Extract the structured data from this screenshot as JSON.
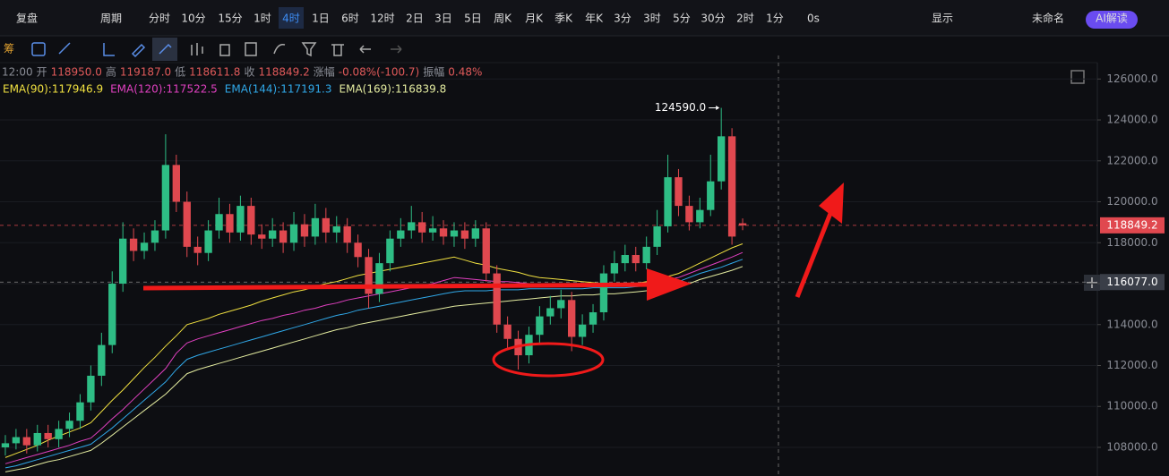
{
  "toolbar": {
    "items": [
      "复盘",
      "周期",
      "分时",
      "10分",
      "15分",
      "1时",
      "4时",
      "1日",
      "6时",
      "12时",
      "2日",
      "3日",
      "5日",
      "周K",
      "月K",
      "季K",
      "年K",
      "3分",
      "3时",
      "5分",
      "30分",
      "2时",
      "1分",
      "0s",
      "显示",
      "未命名",
      "AI解读"
    ],
    "active": "4时",
    "side_label": "筹"
  },
  "info": [
    "12:00",
    "开",
    "118950.0",
    "高",
    "119187.0",
    "低",
    "118611.8",
    "收",
    "118849.2",
    "涨幅",
    "-0.08%(-100.7)",
    "振幅",
    "0.48%"
  ],
  "chart_data": {
    "type": "candlestick",
    "open": [
      108000,
      108200,
      108500,
      108100,
      108700,
      108400,
      108900,
      109300,
      110200,
      111500,
      113000,
      116000,
      118200,
      117600,
      118000,
      118600,
      121800,
      120000,
      117800,
      117500,
      118600,
      119400,
      118500,
      119800,
      118400,
      118200,
      118600,
      118000,
      118900,
      118300,
      119200,
      118500,
      118800,
      118000,
      117300,
      115500,
      117000,
      118200,
      118600,
      119000,
      118500,
      118700,
      118300,
      118600,
      118200,
      118700,
      116500,
      114000,
      113300,
      112500,
      113500,
      114400,
      114800,
      115200,
      113400,
      114000,
      114600,
      116500,
      117000,
      117400,
      117000,
      117800,
      118800,
      121200,
      119800,
      119000,
      119600,
      121000,
      123200,
      118950
    ],
    "high": [
      108600,
      108900,
      108900,
      109100,
      109100,
      109300,
      109700,
      110600,
      112000,
      113600,
      116600,
      119000,
      118700,
      118500,
      119100,
      123300,
      122300,
      120500,
      118300,
      119100,
      120200,
      119900,
      120300,
      120200,
      118900,
      119200,
      119000,
      119500,
      119400,
      119900,
      119700,
      119300,
      119200,
      118400,
      117700,
      117500,
      118600,
      119200,
      119800,
      119500,
      119300,
      119100,
      119000,
      119000,
      119100,
      119000,
      116900,
      114400,
      113700,
      113900,
      114900,
      115400,
      115700,
      115600,
      114500,
      115000,
      116900,
      117600,
      117900,
      117800,
      118300,
      119600,
      122300,
      121600,
      120300,
      120200,
      122300,
      124590,
      123600,
      119187
    ],
    "low": [
      107600,
      107900,
      107700,
      107800,
      108000,
      108000,
      108500,
      108900,
      109800,
      111000,
      112600,
      115600,
      117100,
      117200,
      117600,
      118200,
      119500,
      117300,
      116900,
      117100,
      118200,
      118000,
      118100,
      117900,
      117700,
      117800,
      117500,
      117600,
      117800,
      117900,
      118000,
      118000,
      117500,
      116800,
      114800,
      115100,
      116600,
      117800,
      118200,
      118000,
      118100,
      117900,
      117800,
      117700,
      117800,
      116100,
      113600,
      112800,
      111800,
      112100,
      113100,
      114000,
      114300,
      112700,
      113000,
      113600,
      114200,
      116100,
      116600,
      116600,
      116700,
      117400,
      118500,
      119300,
      118600,
      118700,
      119300,
      120600,
      117900,
      118611.8
    ],
    "close": [
      108200,
      108500,
      108100,
      108700,
      108400,
      108900,
      109300,
      110200,
      111500,
      113000,
      116000,
      118200,
      117600,
      118000,
      118600,
      121800,
      120000,
      117800,
      117500,
      118600,
      119400,
      118500,
      119800,
      118400,
      118200,
      118600,
      118000,
      118900,
      118300,
      119200,
      118500,
      118800,
      118000,
      117300,
      115500,
      117000,
      118200,
      118600,
      119000,
      118500,
      118700,
      118300,
      118600,
      118200,
      118700,
      116500,
      114000,
      113300,
      112500,
      113500,
      114400,
      114800,
      115200,
      113400,
      114000,
      114600,
      116500,
      117000,
      117400,
      117000,
      117800,
      118800,
      121200,
      119800,
      119000,
      119600,
      121000,
      123200,
      118300,
      118849.2
    ],
    "up_color": "#2ebd85",
    "down_color": "#e0484f",
    "series": [
      {
        "name": "EMA(90):117946.9",
        "color": "#f0e040",
        "values": [
          107500,
          107700,
          107900,
          108100,
          108350,
          108550,
          108750,
          108950,
          109200,
          109750,
          110300,
          110800,
          111350,
          111900,
          112400,
          112950,
          113450,
          114000,
          114150,
          114300,
          114500,
          114650,
          114800,
          114950,
          115150,
          115300,
          115450,
          115600,
          115700,
          115850,
          116000,
          116100,
          116250,
          116400,
          116500,
          116600,
          116700,
          116800,
          116900,
          117000,
          117100,
          117200,
          117300,
          117150,
          117000,
          116900,
          116750,
          116650,
          116550,
          116400,
          116300,
          116250,
          116200,
          116150,
          116100,
          116050,
          116000,
          115950,
          115900,
          116000,
          116100,
          116250,
          116350,
          116500,
          116750,
          117000,
          117250,
          117500,
          117750,
          117946.9
        ]
      },
      {
        "name": "EMA(120):117522.5",
        "color": "#e040c0",
        "values": [
          107200,
          107350,
          107500,
          107650,
          107800,
          107950,
          108100,
          108300,
          108450,
          108900,
          109400,
          109850,
          110350,
          110850,
          111350,
          111850,
          112600,
          113100,
          113300,
          113450,
          113600,
          113750,
          113900,
          114050,
          114200,
          114300,
          114450,
          114550,
          114700,
          114800,
          114950,
          115050,
          115200,
          115300,
          115400,
          115500,
          115600,
          115700,
          115800,
          115900,
          116000,
          116150,
          116300,
          116250,
          116200,
          116150,
          116100,
          116100,
          116050,
          116000,
          116000,
          115950,
          115950,
          115950,
          115950,
          115950,
          115950,
          115950,
          115950,
          116000,
          116050,
          116150,
          116200,
          116300,
          116500,
          116700,
          116900,
          117100,
          117300,
          117522.5
        ]
      },
      {
        "name": "EMA(144):117191.3",
        "color": "#30a8e8",
        "values": [
          107000,
          107100,
          107250,
          107400,
          107550,
          107700,
          107850,
          108000,
          108150,
          108550,
          108950,
          109400,
          109850,
          110300,
          110750,
          111200,
          111800,
          112300,
          112500,
          112650,
          112800,
          112950,
          113100,
          113250,
          113400,
          113550,
          113700,
          113850,
          114000,
          114150,
          114300,
          114450,
          114550,
          114700,
          114800,
          114900,
          115000,
          115100,
          115200,
          115300,
          115400,
          115500,
          115600,
          115650,
          115650,
          115650,
          115700,
          115700,
          115700,
          115750,
          115750,
          115750,
          115750,
          115750,
          115750,
          115800,
          115800,
          115800,
          115800,
          115850,
          115900,
          115950,
          116000,
          116100,
          116300,
          116500,
          116650,
          116800,
          117000,
          117191.3
        ]
      },
      {
        "name": "EMA(169):116839.8",
        "color": "#e4eca0",
        "values": [
          106800,
          106900,
          107000,
          107150,
          107300,
          107400,
          107550,
          107700,
          107850,
          108200,
          108600,
          109000,
          109400,
          109800,
          110200,
          110600,
          111100,
          111600,
          111800,
          111950,
          112100,
          112250,
          112400,
          112550,
          112700,
          112850,
          113000,
          113150,
          113300,
          113450,
          113600,
          113750,
          113850,
          114000,
          114100,
          114200,
          114300,
          114400,
          114500,
          114600,
          114700,
          114800,
          114900,
          114950,
          115000,
          115050,
          115100,
          115150,
          115200,
          115250,
          115300,
          115350,
          115400,
          115400,
          115450,
          115450,
          115500,
          115500,
          115550,
          115600,
          115650,
          115700,
          115750,
          115800,
          116000,
          116200,
          116350,
          116500,
          116650,
          116839.8
        ]
      }
    ],
    "ylim": [
      106600,
      127150
    ],
    "yticks": [
      {
        "value": 108000,
        "label": "108000.0"
      },
      {
        "value": 110000,
        "label": "110000.0"
      },
      {
        "value": 112000,
        "label": "112000.0"
      },
      {
        "value": 114000,
        "label": "114000.0"
      },
      {
        "value": 116000,
        "label": "116000.0"
      },
      {
        "value": 118000,
        "label": "118000.0"
      },
      {
        "value": 120000,
        "label": "120000.0"
      },
      {
        "value": 122000,
        "label": "122000.0"
      },
      {
        "value": 124000,
        "label": "124000.0"
      },
      {
        "value": 126000,
        "label": "126000.0"
      }
    ],
    "grid": true,
    "price_lines": [
      {
        "value": 118849.2,
        "color": "#e0484f"
      },
      {
        "value": 116077,
        "label": "116077.0",
        "color": "#3a3e48"
      }
    ],
    "max_annotation": {
      "value": 124590,
      "label": "124590.0"
    }
  }
}
